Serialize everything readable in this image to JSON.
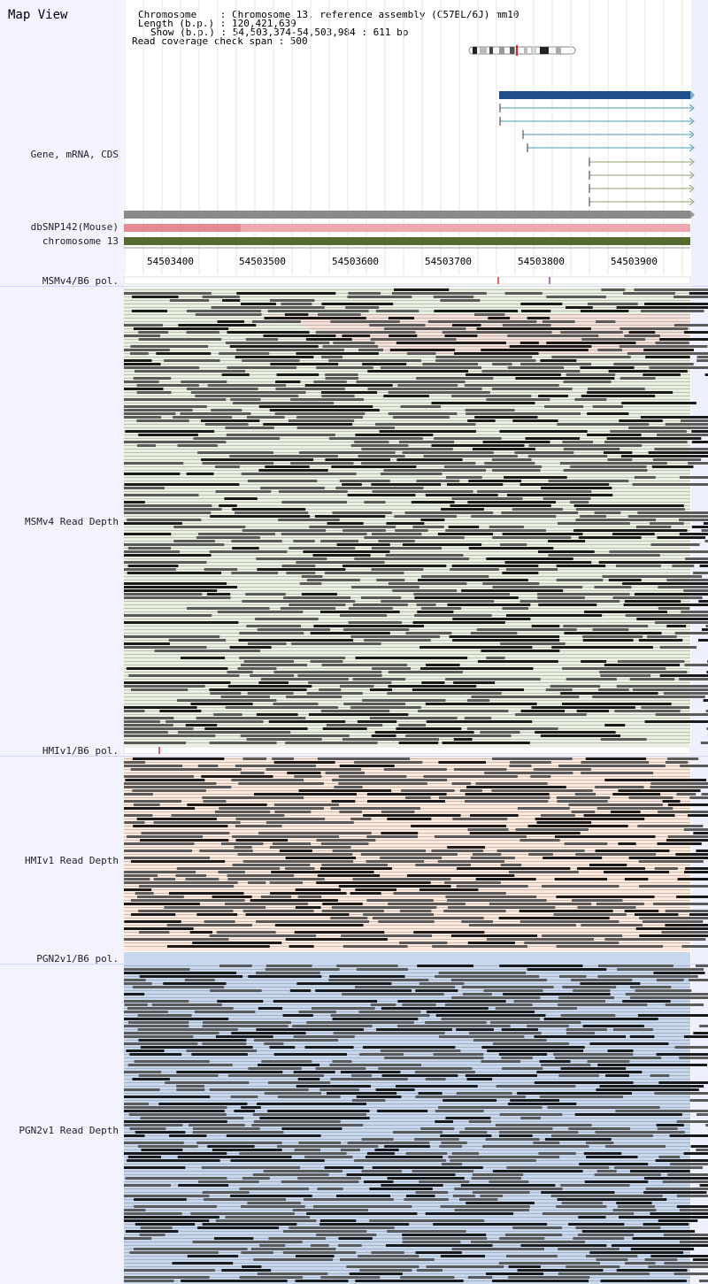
{
  "app": {
    "title": "Map View"
  },
  "header": {
    "chromosome_label": "Chromosome    : Chromosome 13, reference assembly (C57BL/6J) mm10",
    "length_label": "Length (b.p.) : 120,421,639",
    "show_label": "Show (b.p.) : 54,503,374-54,503,984 : 611 bp",
    "coverage_label": "Read coverage check span : 500"
  },
  "tracks": {
    "gene_label": "Gene, mRNA, CDS",
    "dbsnp_label": "dbSNP142(Mouse)",
    "chromosome_label": "chromosome 13",
    "msm_pol_label": "MSMv4/B6 pol.",
    "msm_depth_label": "MSMv4 Read Depth",
    "hmi_pol_label": "HMIv1/B6 pol.",
    "hmi_depth_label": "HMIv1 Read Depth",
    "pgn_pol_label": "PGN2v1/B6 pol.",
    "pgn_depth_label": "PGN2v1 Read Depth"
  },
  "ruler": {
    "ticks": [
      "54503400",
      "54503500",
      "54503600",
      "54503700",
      "54503800",
      "54503900"
    ]
  },
  "colors": {
    "sidebar": "#f2f3ff",
    "gene_bar": "#1f4e8c",
    "mrna_line": "#4a9aa8",
    "cds_line": "#8aa06a",
    "snp_track": "#f0a8b0",
    "chrom_track": "#556b2f",
    "msm_bg": "#eaf0e0",
    "hmi_bg": "#fde9dc",
    "pgn_bg": "#c6d7ee",
    "read_dark": "#1a1a1a",
    "read_gray": "#5a5a5a"
  }
}
